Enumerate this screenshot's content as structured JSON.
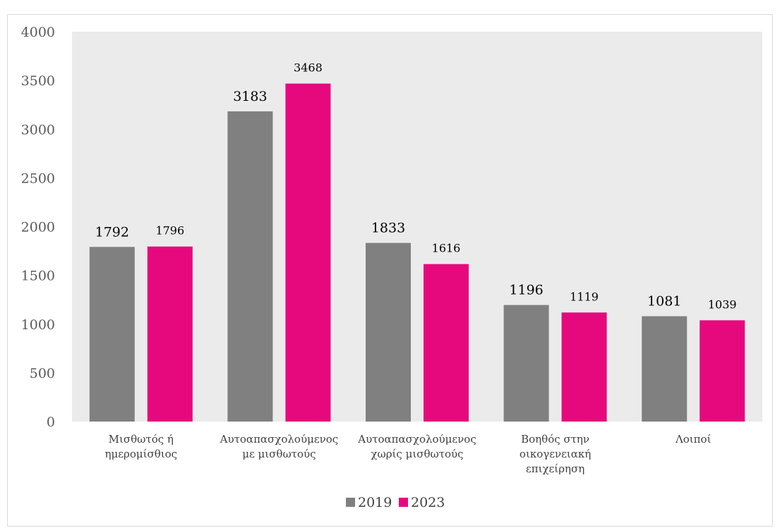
{
  "chart_data": {
    "type": "bar",
    "title": "",
    "xlabel": "",
    "ylabel": "",
    "ylim": [
      0,
      4000
    ],
    "yticks": [
      0,
      500,
      1000,
      1500,
      2000,
      2500,
      3000,
      3500,
      4000
    ],
    "grid": false,
    "legend_position": "bottom",
    "plot_background": "#ebebeb",
    "categories": [
      [
        "Μισθωτός  ή",
        "ημερομίσθιος"
      ],
      [
        "Αυτοαπασχολούμενος",
        "με μισθωτούς"
      ],
      [
        "Αυτοαπασχολούμενος",
        "χωρίς μισθωτούς"
      ],
      [
        "Βοηθός στην",
        "οικογενειακή",
        "επιχείρηση"
      ],
      [
        "Λοιποί"
      ]
    ],
    "series": [
      {
        "name": "2019",
        "color": "#808080",
        "values": [
          1792,
          3183,
          1833,
          1196,
          1081
        ]
      },
      {
        "name": "2023",
        "color": "#e6097e",
        "values": [
          1796,
          3468,
          1616,
          1119,
          1039
        ]
      }
    ]
  }
}
